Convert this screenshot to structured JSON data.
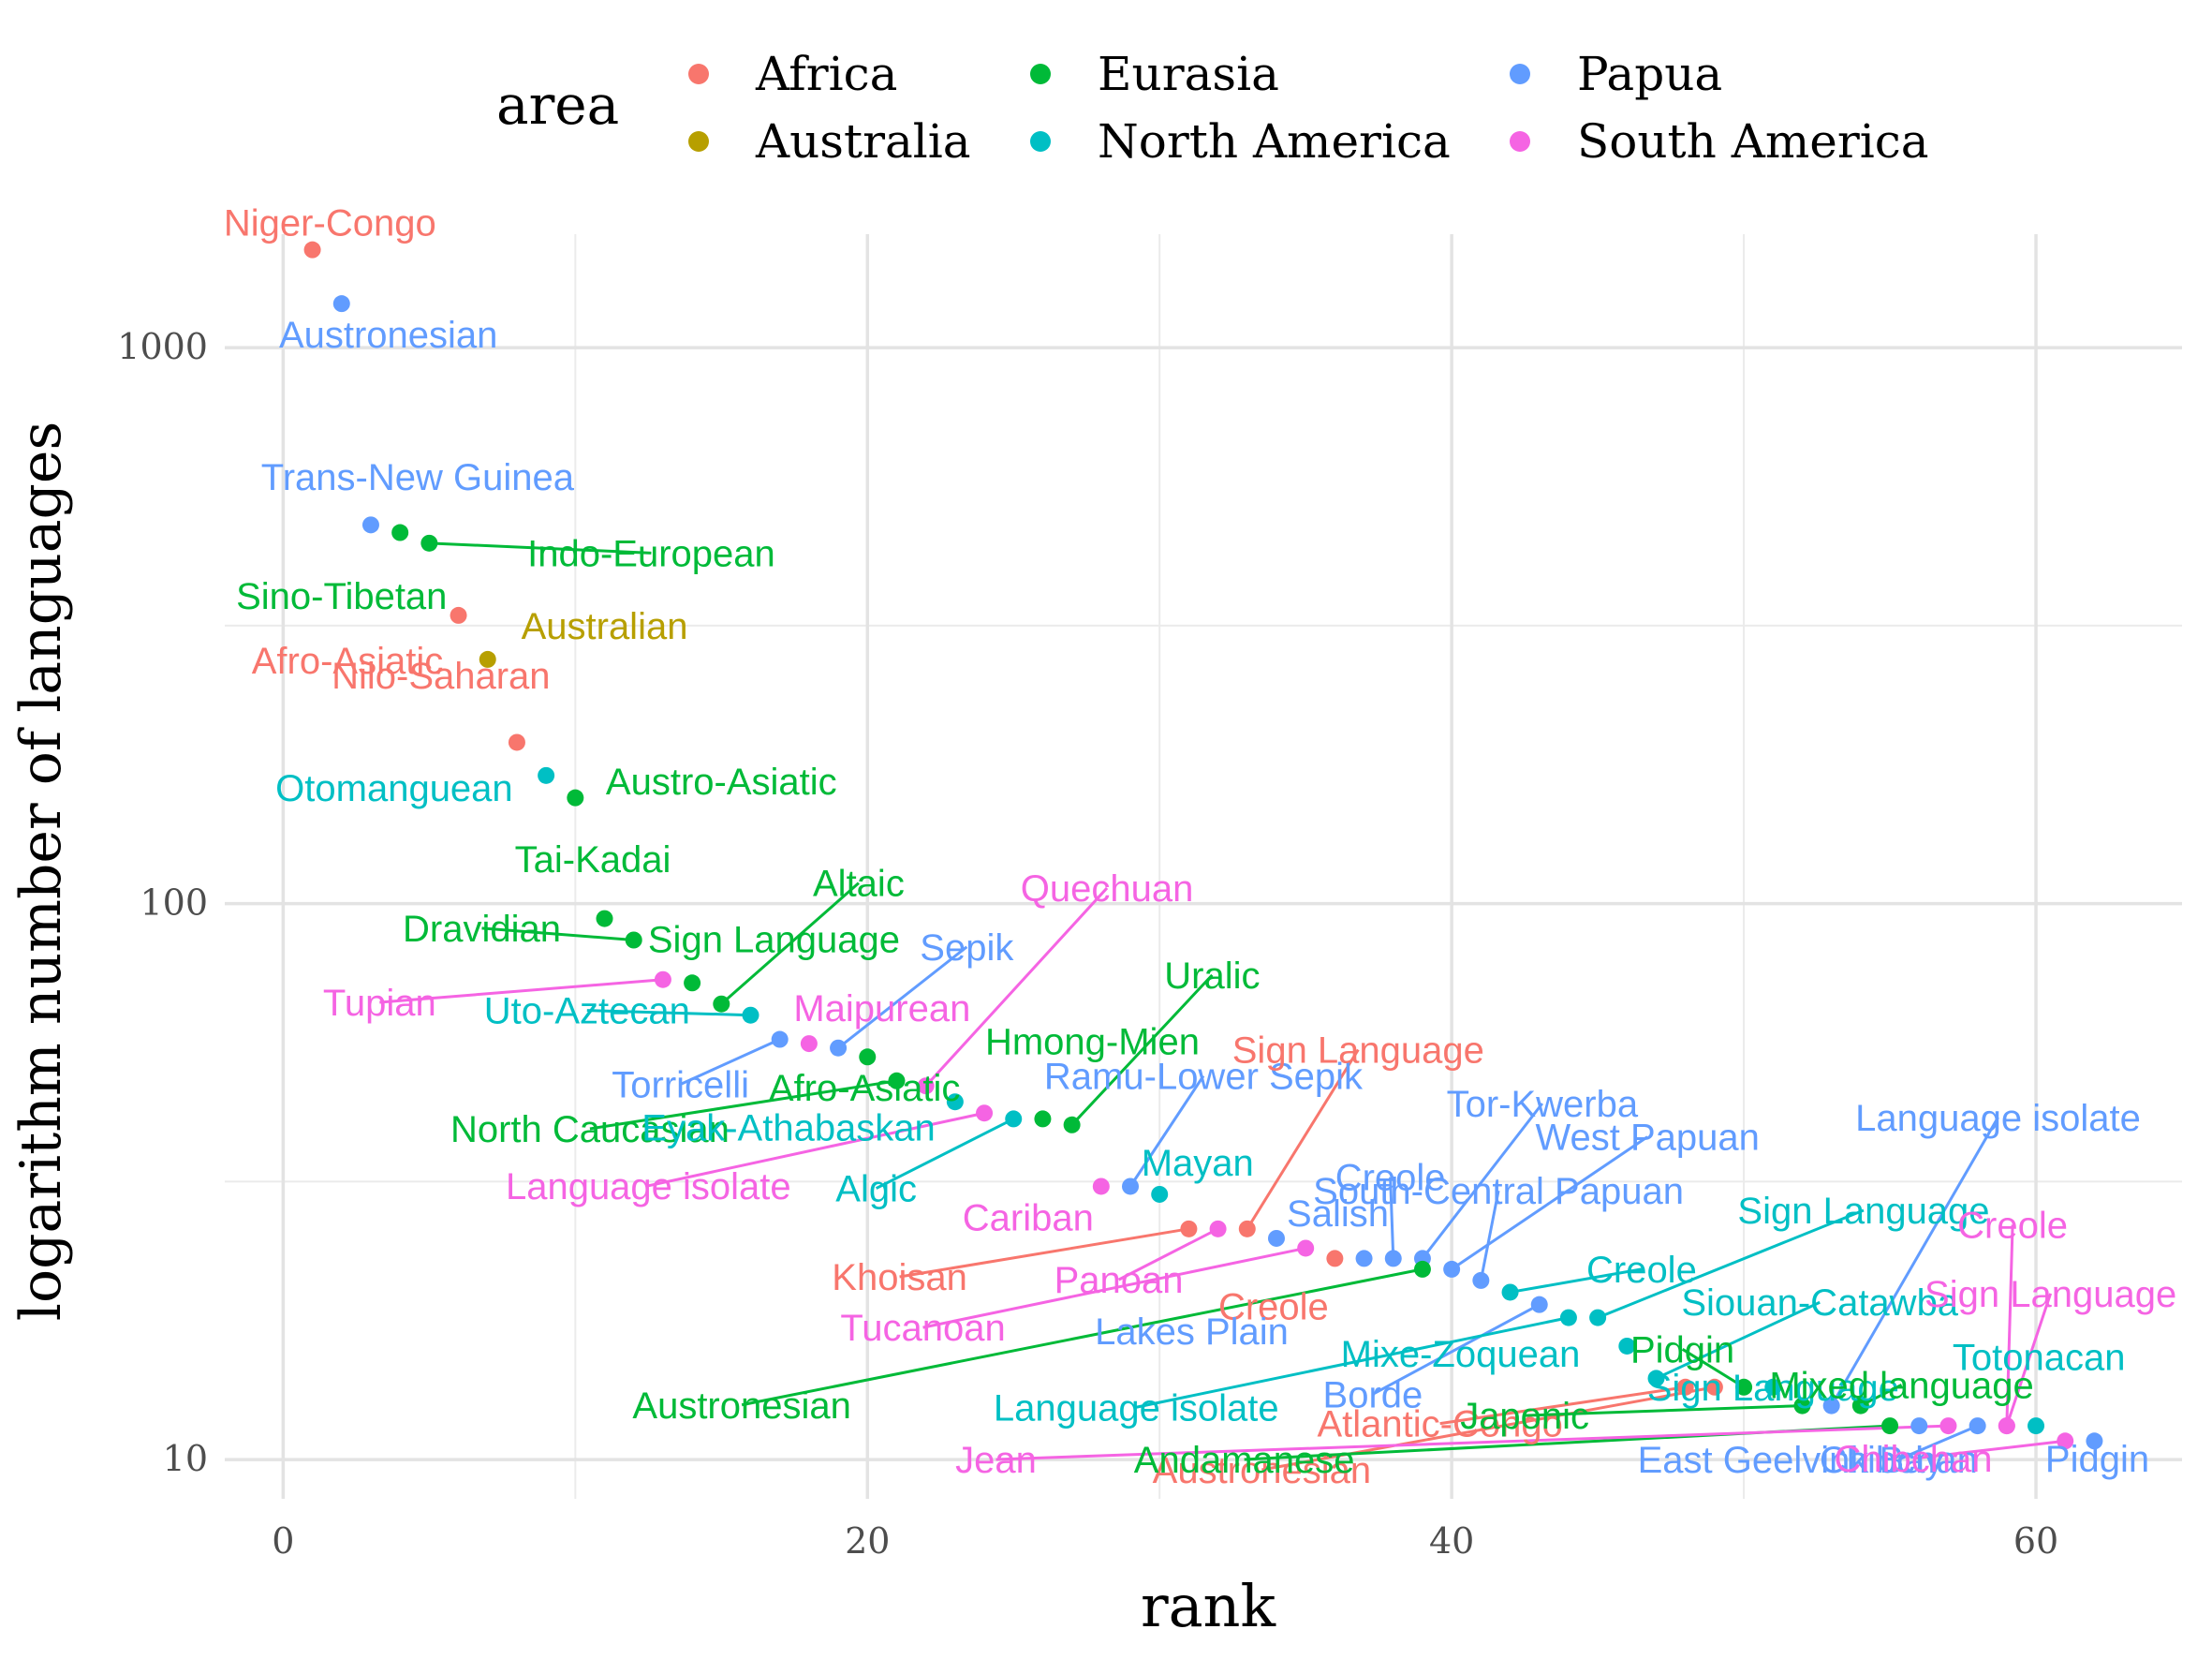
{
  "colors": {
    "Africa": "#F8766D",
    "Australia": "#B79F00",
    "Eurasia": "#00BA38",
    "North America": "#00BFC4",
    "Papua": "#619CFF",
    "South America": "#F564E3"
  },
  "legend": {
    "title": "area",
    "items": [
      {
        "label": "Africa",
        "key": "Africa"
      },
      {
        "label": "Australia",
        "key": "Australia"
      },
      {
        "label": "Eurasia",
        "key": "Eurasia"
      },
      {
        "label": "North America",
        "key": "North America"
      },
      {
        "label": "Papua",
        "key": "Papua"
      },
      {
        "label": "South America",
        "key": "South America"
      }
    ]
  },
  "chart_data": {
    "type": "scatter",
    "xlabel": "rank",
    "ylabel": "logarithm number of languages",
    "y_scale": "log10",
    "xlim": [
      -2,
      65
    ],
    "ylim": [
      8.5,
      1600
    ],
    "x_ticks": [
      0,
      20,
      40,
      60
    ],
    "y_ticks": [
      10,
      100,
      1000
    ],
    "x_tick_labels": [
      "0",
      "20",
      "40",
      "60"
    ],
    "y_tick_labels": [
      "10",
      "100",
      "1000"
    ],
    "grid": true,
    "legend_position": "top",
    "points": [
      {
        "rank": 1,
        "n": 1500,
        "family": "Niger-Congo",
        "area": "Africa",
        "label_dx": 0.6,
        "label_dy": 1.12
      },
      {
        "rank": 2,
        "n": 1200,
        "family": "Austronesian",
        "area": "Papua",
        "label_dx": 1.6,
        "label_dy": 0.88
      },
      {
        "rank": 3,
        "n": 480,
        "family": "Trans-New Guinea",
        "area": "Papua",
        "label_dx": 1.6,
        "label_dy": 1.22
      },
      {
        "rank": 4,
        "n": 465,
        "family": "Sino-Tibetan",
        "area": "Eurasia",
        "label_dx": -2.0,
        "label_dy": 0.77
      },
      {
        "rank": 5,
        "n": 445,
        "family": "Indo-European",
        "area": "Eurasia",
        "label_dx": 7.6,
        "label_dy": 0.96,
        "line": true
      },
      {
        "rank": 6,
        "n": 330,
        "family": "Afro-Asiatic",
        "area": "Africa",
        "label_dx": -3.8,
        "label_dy": 0.83
      },
      {
        "rank": 7,
        "n": 275,
        "family": "Australian",
        "area": "Australia",
        "label_dx": 4.0,
        "label_dy": 1.15
      },
      {
        "rank": 8,
        "n": 195,
        "family": "Nilo-Saharan",
        "area": "Africa",
        "label_dx": -2.6,
        "label_dy": 1.32
      },
      {
        "rank": 9,
        "n": 170,
        "family": "Otomanguean",
        "area": "North America",
        "label_dx": -5.2,
        "label_dy": 0.95
      },
      {
        "rank": 10,
        "n": 155,
        "family": "Austro-Asiatic",
        "area": "Eurasia",
        "label_dx": 5.0,
        "label_dy": 1.07
      },
      {
        "rank": 11,
        "n": 94,
        "family": "Tai-Kadai",
        "area": "Eurasia",
        "label_dx": -0.4,
        "label_dy": 1.28
      },
      {
        "rank": 12,
        "n": 86,
        "family": "Dravidian",
        "area": "Eurasia",
        "label_dx": -5.2,
        "label_dy": 1.05,
        "line": true
      },
      {
        "rank": 13,
        "n": 73,
        "family": "Tupian",
        "area": "South America",
        "label_dx": -9.7,
        "label_dy": 0.91,
        "line": true
      },
      {
        "rank": 14,
        "n": 72,
        "family": "Sign Language",
        "area": "Eurasia",
        "label_dx": 2.8,
        "label_dy": 1.2
      },
      {
        "rank": 15,
        "n": 66,
        "family": "Altaic",
        "area": "Eurasia",
        "label_dx": 4.7,
        "label_dy": 1.65,
        "line": true
      },
      {
        "rank": 16,
        "n": 63,
        "family": "Uto-Aztecan",
        "area": "North America",
        "label_dx": -5.6,
        "label_dy": 1.02,
        "line": true
      },
      {
        "rank": 17,
        "n": 57,
        "family": "Torricelli",
        "area": "Papua",
        "label_dx": -3.4,
        "label_dy": 0.83,
        "line": true
      },
      {
        "rank": 18,
        "n": 56,
        "family": "Maipurean",
        "area": "South America",
        "label_dx": 2.5,
        "label_dy": 1.16
      },
      {
        "rank": 19,
        "n": 55,
        "family": "Sepik",
        "area": "Papua",
        "label_dx": 4.4,
        "label_dy": 1.52,
        "line": true
      },
      {
        "rank": 20,
        "n": 53,
        "family": "Afro-Asiatic",
        "area": "Eurasia",
        "label_dx": -0.1,
        "label_dy": 0.88
      },
      {
        "rank": 21,
        "n": 48,
        "family": "North Caucasian",
        "area": "Eurasia",
        "label_dx": -10.5,
        "label_dy": 0.82,
        "line": true
      },
      {
        "rank": 22,
        "n": 47,
        "family": "Quechuan",
        "area": "South America",
        "label_dx": 6.2,
        "label_dy": 2.27,
        "line": true
      },
      {
        "rank": 23,
        "n": 44,
        "family": "Eyak-Athabaskan",
        "area": "North America",
        "label_dx": -5.7,
        "label_dy": 0.9
      },
      {
        "rank": 24,
        "n": 42,
        "family": "Language isolate",
        "area": "South America",
        "label_dx": -11.5,
        "label_dy": 0.74,
        "line": true
      },
      {
        "rank": 25,
        "n": 41,
        "family": "Algic",
        "area": "North America",
        "label_dx": -4.7,
        "label_dy": 0.75,
        "line": true
      },
      {
        "rank": 26,
        "n": 41,
        "family": "Hmong-Mien",
        "area": "Eurasia",
        "label_dx": 1.7,
        "label_dy": 1.38
      },
      {
        "rank": 27,
        "n": 40,
        "family": "Uralic",
        "area": "Eurasia",
        "label_dx": 4.8,
        "label_dy": 1.86,
        "line": true
      },
      {
        "rank": 28,
        "n": 31,
        "family": "Cariban",
        "area": "South America",
        "label_dx": -2.5,
        "label_dy": 0.88
      },
      {
        "rank": 29,
        "n": 31,
        "family": "Ramu-Lower Sepik",
        "area": "Papua",
        "label_dx": 2.5,
        "label_dy": 1.58,
        "line": true
      },
      {
        "rank": 30,
        "n": 30,
        "family": "Mayan",
        "area": "North America",
        "label_dx": 1.3,
        "label_dy": 1.14
      },
      {
        "rank": 31,
        "n": 26,
        "family": "Khoisan",
        "area": "Africa",
        "label_dx": -9.9,
        "label_dy": 0.82,
        "line": true
      },
      {
        "rank": 32,
        "n": 26,
        "family": "Panoan",
        "area": "South America",
        "label_dx": -3.4,
        "label_dy": 0.81,
        "line": true
      },
      {
        "rank": 33,
        "n": 26,
        "family": "Sign Language",
        "area": "Africa",
        "label_dx": 3.8,
        "label_dy": 2.1,
        "line": true
      },
      {
        "rank": 34,
        "n": 25,
        "family": "Salish",
        "area": "Papua",
        "label_dx": 2.1,
        "label_dy": 1.11
      },
      {
        "rank": 35,
        "n": 24,
        "family": "Tucanoan",
        "area": "South America",
        "label_dx": -13.1,
        "label_dy": 0.72,
        "line": true
      },
      {
        "rank": 36,
        "n": 23,
        "family": "Creole",
        "area": "Africa",
        "label_dx": -2.1,
        "label_dy": 0.82
      },
      {
        "rank": 37,
        "n": 23,
        "family": "Lakes Plain",
        "area": "Papua",
        "label_dx": -5.9,
        "label_dy": 0.74
      },
      {
        "rank": 38,
        "n": 23,
        "family": "Creole",
        "area": "Papua",
        "label_dx": -0.1,
        "label_dy": 1.4,
        "line": true
      },
      {
        "rank": 39,
        "n": 23,
        "family": "Tor-Kwerba",
        "area": "Papua",
        "label_dx": 4.1,
        "label_dy": 1.9,
        "line": true
      },
      {
        "rank": 39,
        "n": 22,
        "family": "Austronesian",
        "area": "Eurasia",
        "label_dx": -23.3,
        "label_dy": 0.57,
        "line": true
      },
      {
        "rank": 40,
        "n": 22,
        "family": "West Papuan",
        "area": "Papua",
        "label_dx": 6.7,
        "label_dy": 1.73,
        "line": true
      },
      {
        "rank": 41,
        "n": 21,
        "family": "South-Central Papuan",
        "area": "Papua",
        "label_dx": 0.6,
        "label_dy": 1.45,
        "line": true
      },
      {
        "rank": 42,
        "n": 20,
        "family": "Creole",
        "area": "North America",
        "label_dx": 4.5,
        "label_dy": 1.1,
        "line": true
      },
      {
        "rank": 43,
        "n": 19,
        "family": "Borde",
        "area": "Papua",
        "label_dx": -5.7,
        "label_dy": 0.69,
        "line": true
      },
      {
        "rank": 44,
        "n": 18,
        "family": "Language isolate",
        "area": "North America",
        "label_dx": -14.8,
        "label_dy": 0.69,
        "line": true
      },
      {
        "rank": 45,
        "n": 18,
        "family": "Sign Language",
        "area": "North America",
        "label_dx": 9.1,
        "label_dy": 1.56,
        "line": true
      },
      {
        "rank": 46,
        "n": 16,
        "family": "Mixe-Zoquean",
        "area": "North America",
        "label_dx": -5.7,
        "label_dy": 0.97
      },
      {
        "rank": 47,
        "n": 14,
        "family": "Siouan-Catawba",
        "area": "North America",
        "label_dx": 5.6,
        "label_dy": 1.37,
        "line": true
      },
      {
        "rank": 48,
        "n": 13.5,
        "family": "Atlantic-Congo",
        "area": "Africa",
        "label_dx": -8.4,
        "label_dy": 0.86,
        "line": true
      },
      {
        "rank": 49,
        "n": 13.5,
        "family": "Austronesian",
        "area": "Africa",
        "label_dx": -15.5,
        "label_dy": 0.71,
        "line": true
      },
      {
        "rank": 50,
        "n": 13.5,
        "family": "Pidgin",
        "area": "Eurasia",
        "label_dx": -2.1,
        "label_dy": 1.17,
        "line": true
      },
      {
        "rank": 51,
        "n": 13.5,
        "family": "Sign Language",
        "area": "North America",
        "label_dx": 0,
        "label_dy": 1
      },
      {
        "rank": 52,
        "n": 12.5,
        "family": "Japonic",
        "area": "Eurasia",
        "label_dx": -9.5,
        "label_dy": 0.96,
        "line": true
      },
      {
        "rank": 53,
        "n": 12.5,
        "family": "Language isolate",
        "area": "Papua",
        "label_dx": 5.7,
        "label_dy": 3.3,
        "line": true
      },
      {
        "rank": 54,
        "n": 12.5,
        "family": "Mixed language",
        "area": "Eurasia",
        "label_dx": 1.4,
        "label_dy": 1.09,
        "line": true
      },
      {
        "rank": 55,
        "n": 11.5,
        "family": "Andamanese",
        "area": "Eurasia",
        "label_dx": -22.1,
        "label_dy": 0.87,
        "line": true
      },
      {
        "rank": 56,
        "n": 11.5,
        "family": "East Geelvink Bay",
        "area": "Papua",
        "label_dx": -4.4,
        "label_dy": 0.87
      },
      {
        "rank": 57,
        "n": 11.5,
        "family": "Jean",
        "area": "South America",
        "label_dx": -32.6,
        "label_dy": 0.87,
        "line": true
      },
      {
        "rank": 58,
        "n": 11.5,
        "family": "Chibchan",
        "area": "Papua",
        "label_dx": -2.7,
        "label_dy": 0.87,
        "line": true
      },
      {
        "rank": 59,
        "n": 11.5,
        "family": "Creole",
        "area": "South America",
        "label_dx": 0.2,
        "label_dy": 2.3,
        "line": true
      },
      {
        "rank": 59,
        "n": 11.5,
        "family": "Sign Language",
        "area": "South America",
        "label_dx": 1.5,
        "label_dy": 1.73,
        "line": true
      },
      {
        "rank": 60,
        "n": 11.5,
        "family": "Totonacan",
        "area": "North America",
        "label_dx": 0.1,
        "label_dy": 1.33
      },
      {
        "rank": 61,
        "n": 10.8,
        "family": "Chibchan",
        "area": "South America",
        "label_dx": -5.2,
        "label_dy": 0.93,
        "line": true
      },
      {
        "rank": 62,
        "n": 10.8,
        "family": "Pidgin",
        "area": "Papua",
        "label_dx": 0.1,
        "label_dy": 0.93
      }
    ]
  }
}
